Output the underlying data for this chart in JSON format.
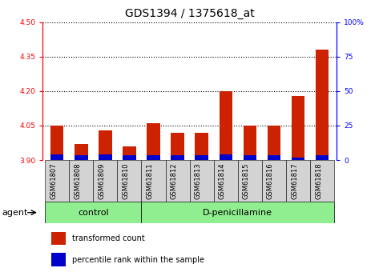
{
  "title": "GDS1394 / 1375618_at",
  "samples": [
    "GSM61807",
    "GSM61808",
    "GSM61809",
    "GSM61810",
    "GSM61811",
    "GSM61812",
    "GSM61813",
    "GSM61814",
    "GSM61815",
    "GSM61816",
    "GSM61817",
    "GSM61818"
  ],
  "red_values": [
    4.05,
    3.97,
    4.03,
    3.96,
    4.06,
    4.02,
    4.02,
    4.2,
    4.05,
    4.05,
    4.18,
    4.38
  ],
  "blue_values": [
    3.924,
    3.921,
    3.923,
    3.921,
    3.922,
    3.921,
    3.921,
    3.923,
    3.921,
    3.921,
    3.912,
    3.922
  ],
  "base": 3.9,
  "ylim_left": [
    3.9,
    4.5
  ],
  "yticks_left": [
    3.9,
    4.05,
    4.2,
    4.35,
    4.5
  ],
  "ylim_right": [
    0,
    100
  ],
  "yticks_right": [
    0,
    25,
    50,
    75,
    100
  ],
  "yticklabels_right": [
    "0",
    "25",
    "50",
    "75",
    "100%"
  ],
  "n_control": 4,
  "n_treatment": 8,
  "control_label": "control",
  "treatment_label": "D-penicillamine",
  "agent_label": "agent",
  "group_bg_color": "#90EE90",
  "sample_box_color": "#D3D3D3",
  "red_color": "#CC2200",
  "blue_color": "#0000CC",
  "legend_red": "transformed count",
  "legend_blue": "percentile rank within the sample",
  "bar_width": 0.55,
  "title_fontsize": 10,
  "tick_fontsize": 6.5,
  "sample_fontsize": 6,
  "group_fontsize": 8,
  "legend_fontsize": 7
}
